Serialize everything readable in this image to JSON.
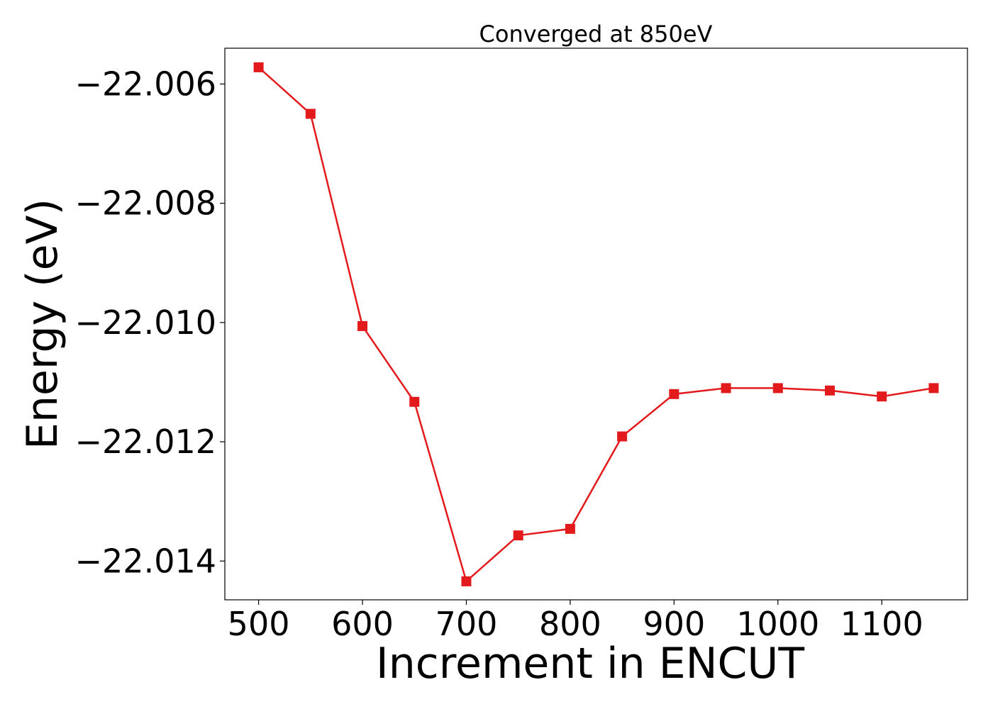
{
  "chart_data": {
    "type": "line",
    "title": "Converged at 850eV",
    "xlabel": "Increment in ENCUT",
    "ylabel": "Energy (eV)",
    "x": [
      500,
      550,
      600,
      650,
      700,
      750,
      800,
      850,
      900,
      950,
      1000,
      1050,
      1100,
      1150
    ],
    "series": [
      {
        "values": [
          -22.00572,
          -22.0065,
          -22.01006,
          -22.01133,
          -22.01434,
          -22.01357,
          -22.01346,
          -22.01191,
          -22.0112,
          -22.0111,
          -22.0111,
          -22.01114,
          -22.01124,
          -22.0111
        ],
        "color": "#e31a1c",
        "marker": "square"
      }
    ],
    "xlim": [
      467.5,
      1182.5
    ],
    "ylim": [
      -22.01465,
      -22.0054
    ],
    "xticks": [
      500,
      600,
      700,
      800,
      900,
      1000,
      1100
    ],
    "xtick_labels": [
      "500",
      "600",
      "700",
      "800",
      "900",
      "1000",
      "1100"
    ],
    "yticks": [
      -22.006,
      -22.008,
      -22.01,
      -22.012,
      -22.014
    ],
    "ytick_labels": [
      "−22.006",
      "−22.008",
      "−22.010",
      "−22.012",
      "−22.014"
    ],
    "grid": false,
    "legend": "none"
  }
}
